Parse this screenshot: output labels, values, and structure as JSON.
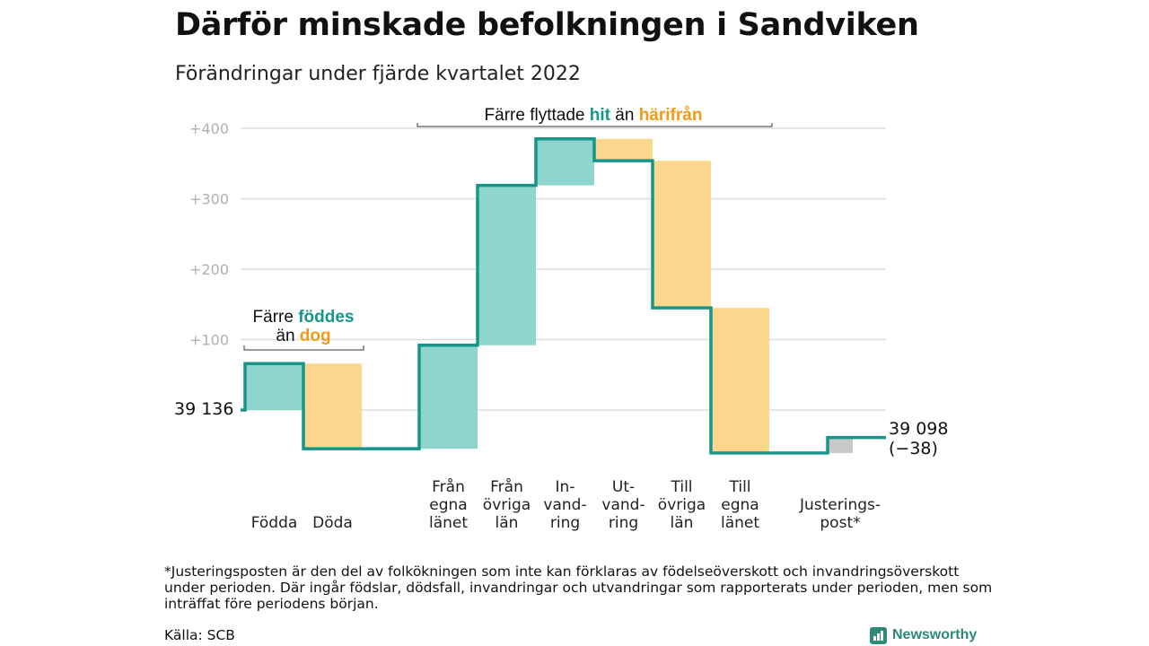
{
  "title": "Därför minskade befolkningen i Sandviken",
  "subtitle": "Förändringar under fjärde kvartalet 2022",
  "annotations": {
    "birth_bracket": {
      "line1_prefix": "Färre ",
      "line1_highlight": "föddes",
      "line2_prefix": "än ",
      "line2_highlight": "dog"
    },
    "migration_bracket": {
      "prefix": "Färre flyttade ",
      "highlight_in": "hit",
      "middle": " än ",
      "highlight_out": "härifrån"
    }
  },
  "colors": {
    "increase": "#8ed6cd",
    "decrease": "#fbd68d",
    "adjustment": "#c8c8c8",
    "line": "#16968a",
    "highlight_in": "#16968a",
    "highlight_out": "#f29a17",
    "grid": "#dddddd"
  },
  "chart_data": {
    "type": "waterfall",
    "start": {
      "label": "39 136",
      "value": 0
    },
    "end": {
      "label": "39 098",
      "change_label": "(−38)",
      "value": -38
    },
    "y_ticks": [
      {
        "value": 100,
        "label": "+100"
      },
      {
        "value": 200,
        "label": "+200"
      },
      {
        "value": 300,
        "label": "+300"
      },
      {
        "value": 400,
        "label": "+400"
      }
    ],
    "ylim": [
      -70,
      420
    ],
    "grid": true,
    "steps": [
      {
        "category": "Födda",
        "label_lines": [
          "Födda"
        ],
        "value": 66,
        "kind": "increase"
      },
      {
        "category": "Döda",
        "label_lines": [
          "Döda"
        ],
        "value": -121,
        "kind": "decrease"
      },
      {
        "category": "Från egna länet",
        "label_lines": [
          "Från",
          "egna",
          "länet"
        ],
        "value": 147,
        "kind": "increase"
      },
      {
        "category": "Från övriga län",
        "label_lines": [
          "Från",
          "övriga",
          "län"
        ],
        "value": 227,
        "kind": "increase"
      },
      {
        "category": "Invandring",
        "label_lines": [
          "In-",
          "vand-",
          "ring"
        ],
        "value": 66,
        "kind": "increase"
      },
      {
        "category": "Utvandring",
        "label_lines": [
          "Ut-",
          "vand-",
          "ring"
        ],
        "value": -31,
        "kind": "decrease"
      },
      {
        "category": "Till övriga län",
        "label_lines": [
          "Till",
          "övriga",
          "län"
        ],
        "value": -209,
        "kind": "decrease"
      },
      {
        "category": "Till egna länet",
        "label_lines": [
          "Till",
          "egna",
          "länet"
        ],
        "value": -206,
        "kind": "decrease"
      },
      {
        "category": "Justeringspost*",
        "label_lines": [
          "Justerings-",
          "post*"
        ],
        "value": 22,
        "kind": "adjustment"
      }
    ]
  },
  "footnote": "*Justeringsposten är den del av folkökningen som inte kan förklaras av födelseöverskott och invandringsöverskott under perioden. Där ingår födslar, dödsfall, invandringar och utvandringar som rapporterats under perioden, men som inträffat före periodens början.",
  "source": "Källa: SCB",
  "brand": {
    "name": "Newsworthy",
    "icon": "bar-chart-logo-icon"
  }
}
